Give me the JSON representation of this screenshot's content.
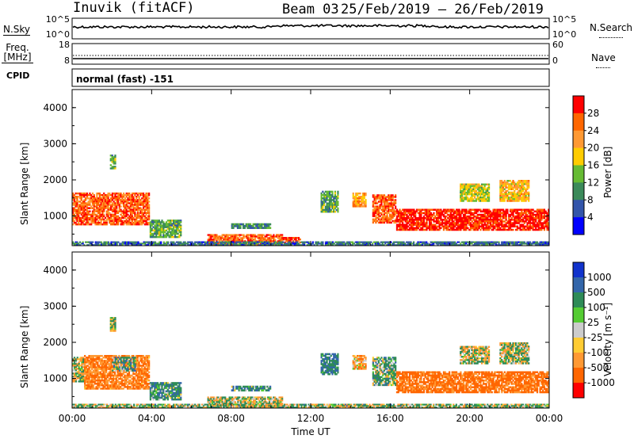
{
  "header": {
    "station": "Inuvik (fitACF)",
    "beam": "Beam 03",
    "dates": "25/Feb/2019 – 26/Feb/2019"
  },
  "panels": {
    "nsky_label": "N.Sky",
    "nsky_tick_top": "10^5",
    "nsky_tick_bottom": "10^0",
    "nsearch_label": "N.Search",
    "nsearch_tick_top": "10^5",
    "nsearch_tick_bottom": "10^0",
    "freq_label": "Freq.",
    "freq_unit": "[MHz]",
    "freq_tick_top": "18",
    "freq_tick_bottom": "8",
    "nave_label": "Nave",
    "nave_tick_top": "60",
    "nave_tick_bottom": "0",
    "cpid_label": "CPID",
    "cpid_value": "normal (fast) -151"
  },
  "chart_data": [
    {
      "type": "heatmap",
      "name": "power",
      "ylabel": "Slant Range [km]",
      "xlabel": "",
      "colorbar_label": "Power [dB]",
      "colorbar_ticks": [
        "28",
        "24",
        "20",
        "16",
        "12",
        "8",
        "4"
      ],
      "colorbar_colors": [
        "#ff0000",
        "#ff6600",
        "#ff9933",
        "#ffcc00",
        "#66bb33",
        "#3b8a5a",
        "#3355aa",
        "#0000ff"
      ],
      "ylim": [
        180,
        4500
      ],
      "yticks": [
        "4000",
        "3000",
        "2000",
        "1000"
      ],
      "xlim_hours": [
        0,
        24
      ],
      "xticks": [
        "00:00",
        "04:00",
        "08:00",
        "12:00",
        "16:00",
        "20:00",
        "00:00"
      ],
      "regions": [
        {
          "t0": 0.0,
          "t1": 3.9,
          "r0": 750,
          "r1": 1650,
          "value": 24
        },
        {
          "t0": 3.9,
          "t1": 5.5,
          "r0": 400,
          "r1": 900,
          "value": 10
        },
        {
          "t0": 6.8,
          "t1": 10.6,
          "r0": 200,
          "r1": 500,
          "value": 24
        },
        {
          "t0": 10.6,
          "t1": 11.5,
          "r0": 250,
          "r1": 420,
          "value": 26
        },
        {
          "t0": 8.0,
          "t1": 10.0,
          "r0": 650,
          "r1": 800,
          "value": 8
        },
        {
          "t0": 12.5,
          "t1": 13.4,
          "r0": 1100,
          "r1": 1700,
          "value": 10
        },
        {
          "t0": 14.1,
          "t1": 14.8,
          "r0": 1250,
          "r1": 1650,
          "value": 20
        },
        {
          "t0": 15.1,
          "t1": 16.3,
          "r0": 800,
          "r1": 1600,
          "value": 24
        },
        {
          "t0": 16.3,
          "t1": 24.0,
          "r0": 600,
          "r1": 1200,
          "value": 28
        },
        {
          "t0": 19.5,
          "t1": 21.0,
          "r0": 1400,
          "r1": 1900,
          "value": 14
        },
        {
          "t0": 21.5,
          "t1": 23.0,
          "r0": 1400,
          "r1": 2000,
          "value": 18
        },
        {
          "t0": 1.9,
          "t1": 2.2,
          "r0": 2300,
          "r1": 2700,
          "value": 10
        },
        {
          "t0": 0.0,
          "t1": 24.0,
          "r0": 180,
          "r1": 300,
          "value": 6
        }
      ]
    },
    {
      "type": "heatmap",
      "name": "velocity",
      "ylabel": "Slant Range [km]",
      "xlabel": "Time UT",
      "colorbar_label": "Velocity [m s⁻¹]",
      "colorbar_ticks": [
        "1000",
        "500",
        "100",
        "25",
        "-25",
        "-100",
        "-500",
        "-1000"
      ],
      "colorbar_colors": [
        "#1133cc",
        "#3366aa",
        "#2e8b57",
        "#55cc33",
        "#cccccc",
        "#ffcc33",
        "#ff9933",
        "#ff6600",
        "#ff0000"
      ],
      "ylim": [
        180,
        4500
      ],
      "yticks": [
        "4000",
        "3000",
        "2000",
        "1000"
      ],
      "xlim_hours": [
        0,
        24
      ],
      "xticks": [
        "00:00",
        "04:00",
        "08:00",
        "12:00",
        "16:00",
        "20:00",
        "00:00"
      ],
      "regions": [
        {
          "t0": 0.0,
          "t1": 0.6,
          "r0": 900,
          "r1": 1600,
          "value": -10
        },
        {
          "t0": 0.6,
          "t1": 3.9,
          "r0": 700,
          "r1": 1650,
          "value": -300
        },
        {
          "t0": 2.0,
          "t1": 3.2,
          "r0": 1200,
          "r1": 1600,
          "value": 150
        },
        {
          "t0": 3.9,
          "t1": 5.5,
          "r0": 400,
          "r1": 900,
          "value": 200
        },
        {
          "t0": 6.8,
          "t1": 10.6,
          "r0": 200,
          "r1": 500,
          "value": 0
        },
        {
          "t0": 8.0,
          "t1": 10.0,
          "r0": 650,
          "r1": 800,
          "value": 200
        },
        {
          "t0": 12.5,
          "t1": 13.4,
          "r0": 1100,
          "r1": 1700,
          "value": 300
        },
        {
          "t0": 14.1,
          "t1": 14.8,
          "r0": 1250,
          "r1": 1650,
          "value": -200
        },
        {
          "t0": 15.1,
          "t1": 16.3,
          "r0": 800,
          "r1": 1600,
          "value": 120
        },
        {
          "t0": 16.3,
          "t1": 24.0,
          "r0": 600,
          "r1": 1200,
          "value": -400
        },
        {
          "t0": 19.5,
          "t1": 21.0,
          "r0": 1400,
          "r1": 1900,
          "value": 0
        },
        {
          "t0": 21.5,
          "t1": 23.0,
          "r0": 1400,
          "r1": 2000,
          "value": 0
        },
        {
          "t0": 1.9,
          "t1": 2.2,
          "r0": 2300,
          "r1": 2700,
          "value": 50
        },
        {
          "t0": 0.0,
          "t1": 24.0,
          "r0": 180,
          "r1": 300,
          "value": 60
        }
      ]
    }
  ]
}
